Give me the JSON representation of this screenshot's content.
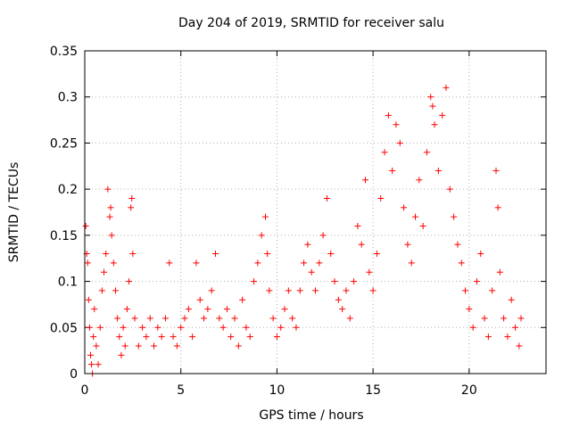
{
  "chart_data": {
    "type": "scatter",
    "title": "Day 204 of 2019, SRMTID for receiver salu",
    "xlabel": "GPS time / hours",
    "ylabel": "SRMTID / TECUs",
    "xlim": [
      0,
      24
    ],
    "ylim": [
      0,
      0.35
    ],
    "xticks": [
      0,
      5,
      10,
      15,
      20
    ],
    "yticks": [
      0,
      0.05,
      0.1,
      0.15,
      0.2,
      0.25,
      0.3,
      0.35
    ],
    "xtick_labels": [
      "0",
      "5",
      "10",
      "15",
      "20"
    ],
    "ytick_labels": [
      "0",
      "0.05",
      "0.1",
      "0.15",
      "0.2",
      "0.25",
      "0.3",
      "0.35"
    ],
    "grid": true,
    "marker": "+",
    "marker_color": "#ff0000",
    "series": [
      {
        "name": "SRMTID",
        "points": [
          [
            0.05,
            0.16
          ],
          [
            0.1,
            0.13
          ],
          [
            0.15,
            0.12
          ],
          [
            0.2,
            0.08
          ],
          [
            0.25,
            0.05
          ],
          [
            0.3,
            0.02
          ],
          [
            0.35,
            0.01
          ],
          [
            0.4,
            0.0
          ],
          [
            0.45,
            0.04
          ],
          [
            0.5,
            0.07
          ],
          [
            0.6,
            0.03
          ],
          [
            0.7,
            0.01
          ],
          [
            0.8,
            0.05
          ],
          [
            0.9,
            0.09
          ],
          [
            1.0,
            0.11
          ],
          [
            1.1,
            0.13
          ],
          [
            1.2,
            0.2
          ],
          [
            1.3,
            0.17
          ],
          [
            1.35,
            0.18
          ],
          [
            1.4,
            0.15
          ],
          [
            1.5,
            0.12
          ],
          [
            1.6,
            0.09
          ],
          [
            1.7,
            0.06
          ],
          [
            1.8,
            0.04
          ],
          [
            1.9,
            0.02
          ],
          [
            2.0,
            0.05
          ],
          [
            2.1,
            0.03
          ],
          [
            2.2,
            0.07
          ],
          [
            2.3,
            0.1
          ],
          [
            2.4,
            0.18
          ],
          [
            2.45,
            0.19
          ],
          [
            2.5,
            0.13
          ],
          [
            2.6,
            0.06
          ],
          [
            2.8,
            0.03
          ],
          [
            3.0,
            0.05
          ],
          [
            3.2,
            0.04
          ],
          [
            3.4,
            0.06
          ],
          [
            3.6,
            0.03
          ],
          [
            3.8,
            0.05
          ],
          [
            4.0,
            0.04
          ],
          [
            4.2,
            0.06
          ],
          [
            4.4,
            0.12
          ],
          [
            4.6,
            0.04
          ],
          [
            4.8,
            0.03
          ],
          [
            5.0,
            0.05
          ],
          [
            5.2,
            0.06
          ],
          [
            5.4,
            0.07
          ],
          [
            5.6,
            0.04
          ],
          [
            5.8,
            0.12
          ],
          [
            6.0,
            0.08
          ],
          [
            6.2,
            0.06
          ],
          [
            6.4,
            0.07
          ],
          [
            6.6,
            0.09
          ],
          [
            6.8,
            0.13
          ],
          [
            7.0,
            0.06
          ],
          [
            7.2,
            0.05
          ],
          [
            7.4,
            0.07
          ],
          [
            7.6,
            0.04
          ],
          [
            7.8,
            0.06
          ],
          [
            8.0,
            0.03
          ],
          [
            8.2,
            0.08
          ],
          [
            8.4,
            0.05
          ],
          [
            8.6,
            0.04
          ],
          [
            8.8,
            0.1
          ],
          [
            9.0,
            0.12
          ],
          [
            9.2,
            0.15
          ],
          [
            9.4,
            0.17
          ],
          [
            9.5,
            0.13
          ],
          [
            9.6,
            0.09
          ],
          [
            9.8,
            0.06
          ],
          [
            10.0,
            0.04
          ],
          [
            10.2,
            0.05
          ],
          [
            10.4,
            0.07
          ],
          [
            10.6,
            0.09
          ],
          [
            10.8,
            0.06
          ],
          [
            11.0,
            0.05
          ],
          [
            11.2,
            0.09
          ],
          [
            11.4,
            0.12
          ],
          [
            11.6,
            0.14
          ],
          [
            11.8,
            0.11
          ],
          [
            12.0,
            0.09
          ],
          [
            12.2,
            0.12
          ],
          [
            12.4,
            0.15
          ],
          [
            12.6,
            0.19
          ],
          [
            12.8,
            0.13
          ],
          [
            13.0,
            0.1
          ],
          [
            13.2,
            0.08
          ],
          [
            13.4,
            0.07
          ],
          [
            13.6,
            0.09
          ],
          [
            13.8,
            0.06
          ],
          [
            14.0,
            0.1
          ],
          [
            14.2,
            0.16
          ],
          [
            14.4,
            0.14
          ],
          [
            14.6,
            0.21
          ],
          [
            14.8,
            0.11
          ],
          [
            15.0,
            0.09
          ],
          [
            15.2,
            0.13
          ],
          [
            15.4,
            0.19
          ],
          [
            15.6,
            0.24
          ],
          [
            15.8,
            0.28
          ],
          [
            16.0,
            0.22
          ],
          [
            16.2,
            0.27
          ],
          [
            16.4,
            0.25
          ],
          [
            16.6,
            0.18
          ],
          [
            16.8,
            0.14
          ],
          [
            17.0,
            0.12
          ],
          [
            17.2,
            0.17
          ],
          [
            17.4,
            0.21
          ],
          [
            17.6,
            0.16
          ],
          [
            17.8,
            0.24
          ],
          [
            18.0,
            0.3
          ],
          [
            18.1,
            0.29
          ],
          [
            18.2,
            0.27
          ],
          [
            18.4,
            0.22
          ],
          [
            18.6,
            0.28
          ],
          [
            18.8,
            0.31
          ],
          [
            19.0,
            0.2
          ],
          [
            19.2,
            0.17
          ],
          [
            19.4,
            0.14
          ],
          [
            19.6,
            0.12
          ],
          [
            19.8,
            0.09
          ],
          [
            20.0,
            0.07
          ],
          [
            20.2,
            0.05
          ],
          [
            20.4,
            0.1
          ],
          [
            20.6,
            0.13
          ],
          [
            20.8,
            0.06
          ],
          [
            21.0,
            0.04
          ],
          [
            21.2,
            0.09
          ],
          [
            21.4,
            0.22
          ],
          [
            21.5,
            0.18
          ],
          [
            21.6,
            0.11
          ],
          [
            21.8,
            0.06
          ],
          [
            22.0,
            0.04
          ],
          [
            22.2,
            0.08
          ],
          [
            22.4,
            0.05
          ],
          [
            22.6,
            0.03
          ],
          [
            22.7,
            0.06
          ]
        ]
      }
    ]
  }
}
